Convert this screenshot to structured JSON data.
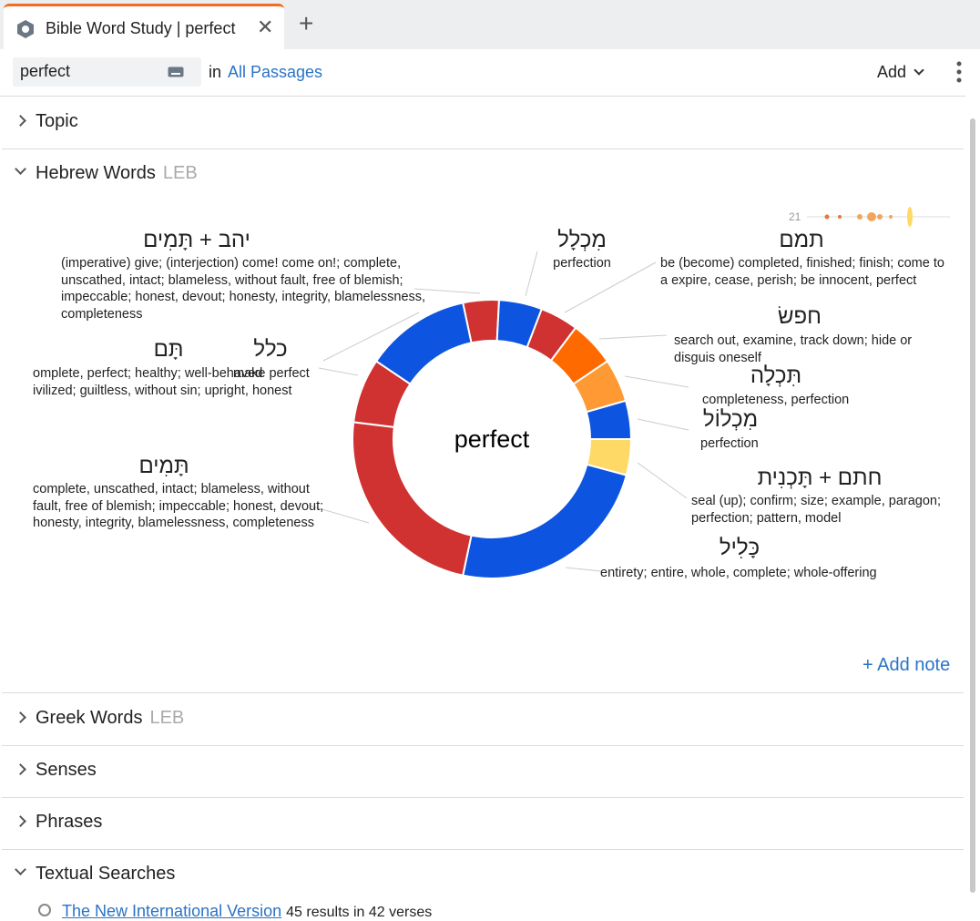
{
  "tab": {
    "title": "Bible Word Study | perfect",
    "new_tab": "+"
  },
  "search": {
    "query": "perfect",
    "in": "in",
    "scope": "All Passages",
    "add": "Add"
  },
  "sections": [
    {
      "label": "Topic"
    },
    {
      "label": "Hebrew Words",
      "tag": "LEB"
    },
    {
      "label": "Greek Words",
      "tag": "LEB"
    },
    {
      "label": "Senses"
    },
    {
      "label": "Phrases"
    },
    {
      "label": "Textual Searches"
    }
  ],
  "chart_data": {
    "type": "donut",
    "center_label": "perfect",
    "categories": [
      "יהב + תָּמִים",
      "מִכְלָל",
      "תמם",
      "חפשׂ",
      "תִּכְלָה",
      "מִכְלוֹל",
      "חתם + תָּכְנִית",
      "כָּלִיל",
      "תָּמִים",
      "כלל",
      "תָּם"
    ],
    "glosses": [
      "(imperative) give; (interjection) come! come on!; complete, unscathed, intact; blameless, without fault, free of blemish; impeccable; honest, devout; honesty, integrity, blamelessness, completeness",
      "perfection",
      "be (become) completed, finished; finish; come to a expire, cease, perish; be innocent, perfect",
      "search out, examine, track down; hide or disguis oneself",
      "completeness, perfection",
      "perfection",
      "seal (up); confirm; size; example, paragon; perfection; pattern, model",
      "entirety; entire, whole, complete; whole-offering",
      "complete, unscathed, intact; blameless, without fault, free of blemish; impeccable; honest, devout; honesty, integrity, blamelessness, completeness",
      "make perfect",
      "omplete, perfect; healthy; well-behaved ivilized; guiltless, without sin; upright, honest"
    ],
    "values": [
      15,
      18,
      16,
      19,
      18,
      16,
      15,
      87,
      85,
      27,
      44
    ],
    "colors": [
      "#d03232",
      "#0d55e0",
      "#d03232",
      "#ff6a00",
      "#ff9933",
      "#0d55e0",
      "#ffd966",
      "#0d55e0",
      "#d03232",
      "#d03232",
      "#0d55e0"
    ]
  },
  "timeline_count": "21",
  "add_note": "+ Add note",
  "textual_search": {
    "link": "The New International Version",
    "result": "45 results in 42 verses"
  }
}
